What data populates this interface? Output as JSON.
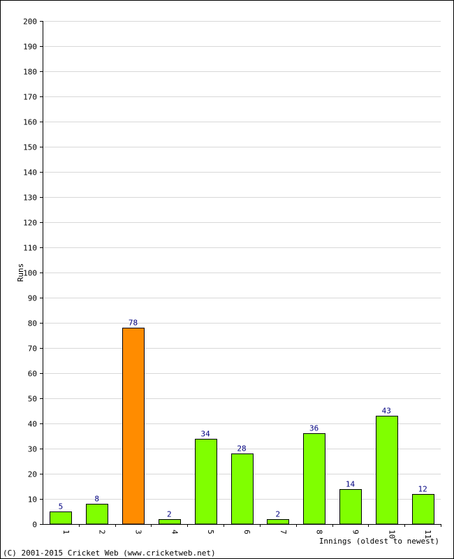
{
  "chart_data": {
    "type": "bar",
    "title": "",
    "xlabel": "Innings (oldest to newest)",
    "ylabel": "Runs",
    "ylim": [
      0,
      200
    ],
    "ytick_step": 10,
    "grid": true,
    "categories": [
      "1",
      "2",
      "3",
      "4",
      "5",
      "6",
      "7",
      "8",
      "9",
      "10",
      "11"
    ],
    "values": [
      5,
      8,
      78,
      2,
      34,
      28,
      2,
      36,
      14,
      43,
      12
    ],
    "highlight_index": 2,
    "colors": {
      "bar": "#80ff00",
      "highlight": "#ff8c00",
      "data_label": "#000080",
      "grid": "#d8d8d8"
    }
  },
  "footer": {
    "copyright": "(C) 2001-2015 Cricket Web (www.cricketweb.net)"
  }
}
